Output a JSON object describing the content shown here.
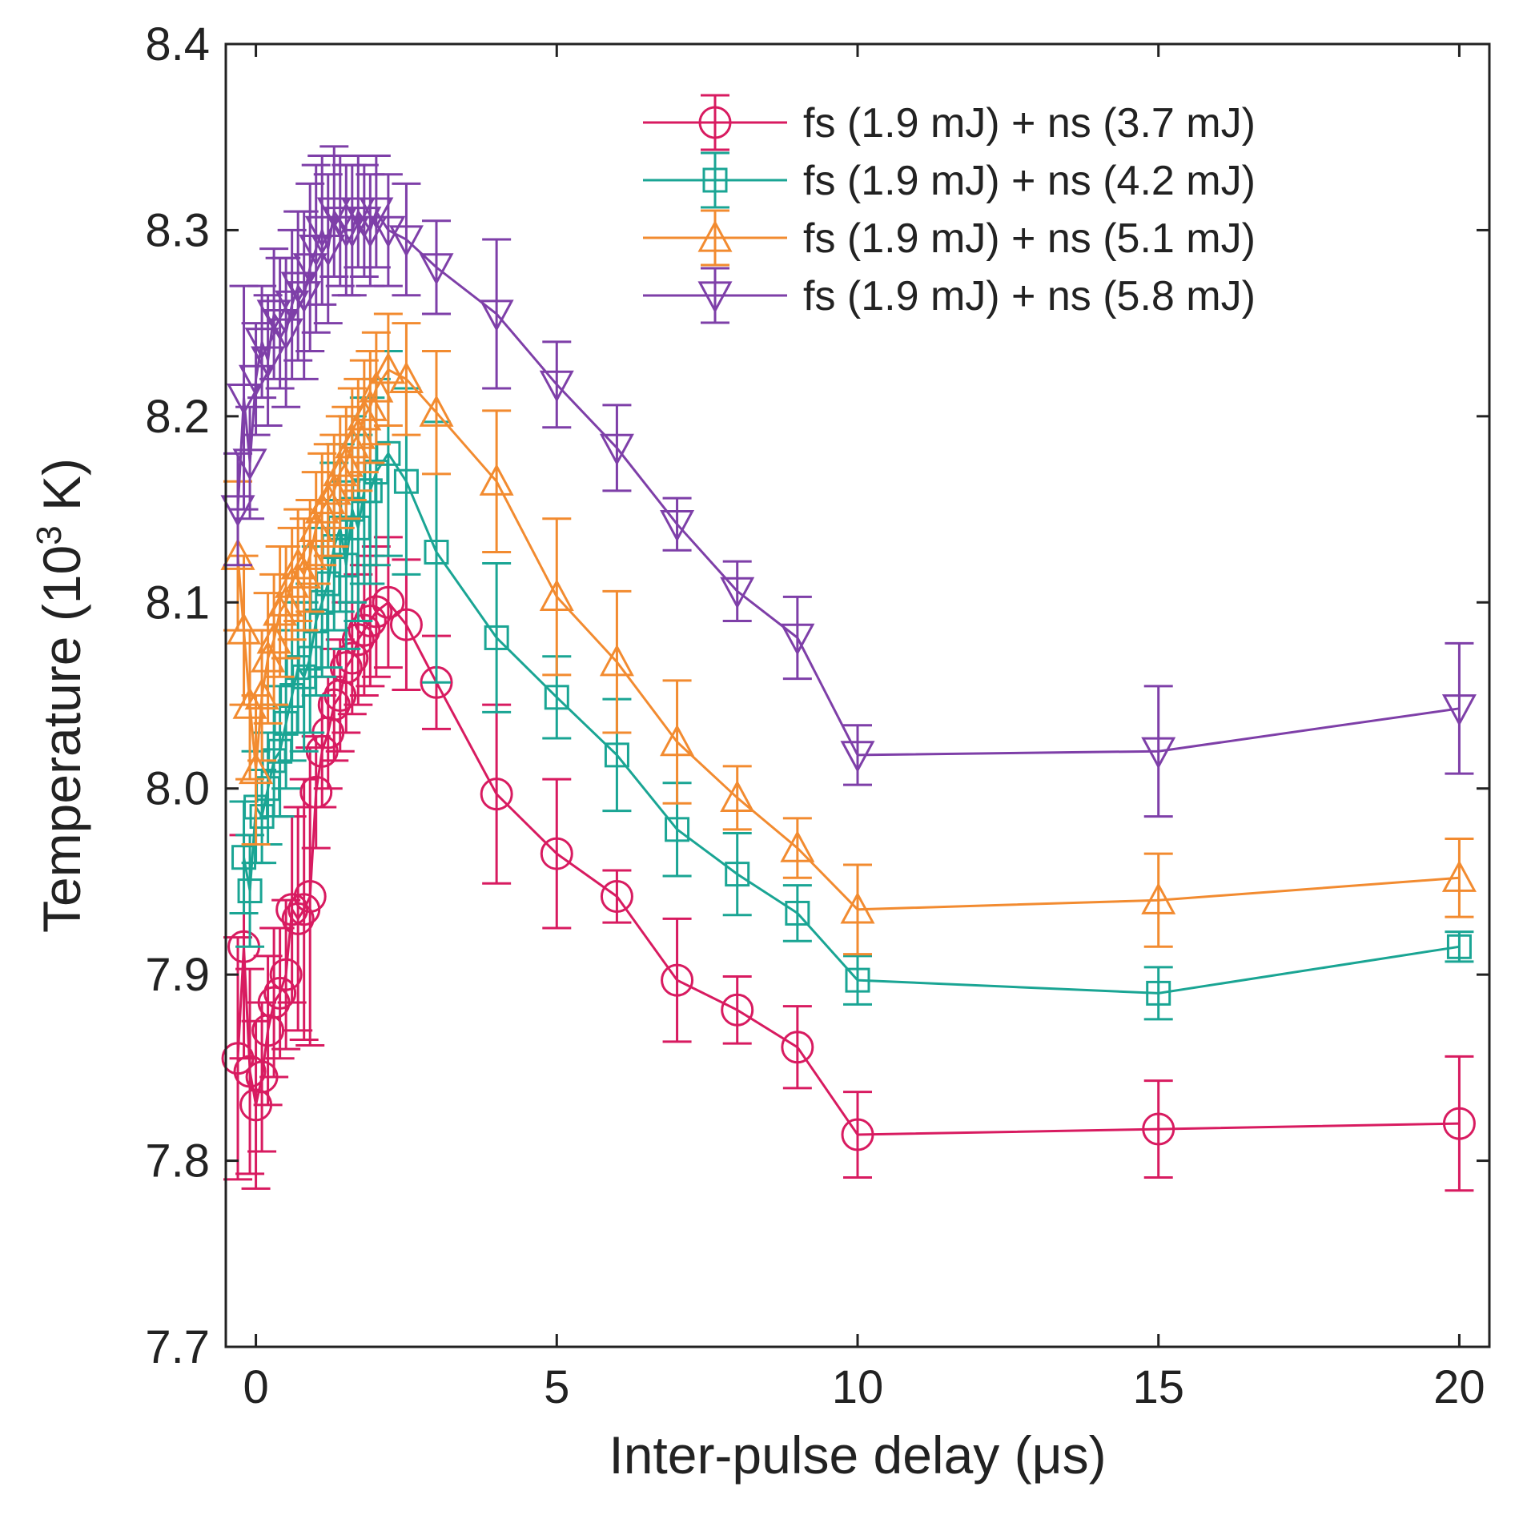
{
  "chart_data": {
    "type": "line",
    "xlabel": "Inter-pulse delay (μs)",
    "ylabel_prefix": "Temperature (10",
    "ylabel_exp": "3",
    "ylabel_suffix": " K)",
    "xlim": [
      -0.5,
      20.5
    ],
    "ylim": [
      7.7,
      8.4
    ],
    "xticks": [
      0,
      5,
      10,
      15,
      20
    ],
    "yticks": [
      7.7,
      7.8,
      7.9,
      8.0,
      8.1,
      8.2,
      8.3,
      8.4
    ],
    "ytick_labels": [
      "7.7",
      "7.8",
      "7.9",
      "8.0",
      "8.1",
      "8.2",
      "8.3",
      "8.4"
    ],
    "grid": false,
    "legend_position": "top-right",
    "series": [
      {
        "name": "fs (1.9 mJ) + ns (3.7 mJ)",
        "color": "#d81b60",
        "marker": "circle",
        "x": [
          -0.3,
          -0.2,
          -0.1,
          0.0,
          0.1,
          0.2,
          0.3,
          0.4,
          0.5,
          0.6,
          0.7,
          0.8,
          0.9,
          1.0,
          1.1,
          1.2,
          1.3,
          1.4,
          1.5,
          1.6,
          1.7,
          1.8,
          1.9,
          2.0,
          2.2,
          2.5,
          3.0,
          4.0,
          5.0,
          6.0,
          7.0,
          8.0,
          9.0,
          10.0,
          15.0,
          20.0
        ],
        "y": [
          7.855,
          7.915,
          7.848,
          7.83,
          7.845,
          7.87,
          7.885,
          7.89,
          7.9,
          7.935,
          7.93,
          7.935,
          7.942,
          7.998,
          8.02,
          8.03,
          8.045,
          8.05,
          8.065,
          8.07,
          8.08,
          8.085,
          8.09,
          8.095,
          8.1,
          8.088,
          8.057,
          7.997,
          7.965,
          7.942,
          7.897,
          7.881,
          7.861,
          7.814,
          7.817,
          7.82
        ],
        "err": [
          0.065,
          0.06,
          0.055,
          0.045,
          0.04,
          0.04,
          0.04,
          0.035,
          0.04,
          0.05,
          0.06,
          0.07,
          0.08,
          0.03,
          0.03,
          0.03,
          0.03,
          0.03,
          0.035,
          0.03,
          0.035,
          0.035,
          0.035,
          0.035,
          0.035,
          0.035,
          0.025,
          0.048,
          0.04,
          0.014,
          0.033,
          0.018,
          0.022,
          0.023,
          0.026,
          0.036
        ]
      },
      {
        "name": "fs (1.9 mJ) + ns (4.2 mJ)",
        "color": "#1aa594",
        "marker": "square",
        "x": [
          -0.2,
          -0.1,
          0.0,
          0.1,
          0.2,
          0.3,
          0.4,
          0.5,
          0.6,
          0.7,
          0.8,
          0.9,
          1.0,
          1.1,
          1.2,
          1.3,
          1.4,
          1.5,
          1.6,
          1.7,
          1.8,
          1.9,
          2.0,
          2.2,
          2.5,
          3.0,
          4.0,
          5.0,
          6.0,
          7.0,
          8.0,
          9.0,
          10.0,
          15.0,
          20.0
        ],
        "y": [
          7.963,
          7.945,
          7.99,
          7.985,
          8.0,
          8.015,
          8.02,
          8.035,
          8.05,
          8.065,
          8.06,
          8.07,
          8.09,
          8.1,
          8.11,
          8.13,
          8.14,
          8.12,
          8.15,
          8.14,
          8.16,
          8.16,
          8.17,
          8.18,
          8.165,
          8.127,
          8.081,
          8.049,
          8.018,
          7.978,
          7.954,
          7.933,
          7.897,
          7.89,
          7.915
        ],
        "err": [
          0.03,
          0.03,
          0.03,
          0.025,
          0.03,
          0.03,
          0.035,
          0.035,
          0.035,
          0.035,
          0.04,
          0.04,
          0.04,
          0.04,
          0.045,
          0.045,
          0.045,
          0.045,
          0.05,
          0.05,
          0.05,
          0.05,
          0.05,
          0.055,
          0.05,
          0.07,
          0.04,
          0.022,
          0.03,
          0.025,
          0.022,
          0.015,
          0.013,
          0.014,
          0.008
        ]
      },
      {
        "name": "fs (1.9 mJ) + ns (5.1 mJ)",
        "color": "#f28b30",
        "marker": "triangle-up",
        "x": [
          -0.3,
          -0.2,
          -0.1,
          0.0,
          0.1,
          0.2,
          0.3,
          0.4,
          0.5,
          0.6,
          0.7,
          0.8,
          0.9,
          1.0,
          1.1,
          1.2,
          1.3,
          1.4,
          1.5,
          1.6,
          1.7,
          1.8,
          1.9,
          2.0,
          2.2,
          2.5,
          3.0,
          4.0,
          5.0,
          6.0,
          7.0,
          8.0,
          9.0,
          10.0,
          15.0,
          20.0
        ],
        "y": [
          8.125,
          8.085,
          8.045,
          8.01,
          8.05,
          8.07,
          8.08,
          8.095,
          8.1,
          8.11,
          8.12,
          8.115,
          8.125,
          8.14,
          8.15,
          8.155,
          8.16,
          8.17,
          8.175,
          8.185,
          8.19,
          8.2,
          8.205,
          8.215,
          8.225,
          8.22,
          8.202,
          8.165,
          8.103,
          8.068,
          8.025,
          7.995,
          7.968,
          7.935,
          7.94,
          7.952
        ],
        "err": [
          0.04,
          0.04,
          0.04,
          0.04,
          0.035,
          0.035,
          0.035,
          0.035,
          0.03,
          0.03,
          0.03,
          0.03,
          0.03,
          0.03,
          0.03,
          0.03,
          0.03,
          0.03,
          0.03,
          0.03,
          0.03,
          0.03,
          0.03,
          0.03,
          0.03,
          0.03,
          0.033,
          0.038,
          0.042,
          0.038,
          0.033,
          0.017,
          0.016,
          0.024,
          0.025,
          0.021
        ]
      },
      {
        "name": "fs (1.9 mJ) + ns (5.8 mJ)",
        "color": "#7e3fa8",
        "marker": "triangle-down",
        "x": [
          -0.3,
          -0.2,
          -0.1,
          0.0,
          0.1,
          0.2,
          0.3,
          0.4,
          0.5,
          0.6,
          0.7,
          0.8,
          0.9,
          1.0,
          1.1,
          1.2,
          1.3,
          1.4,
          1.5,
          1.6,
          1.7,
          1.8,
          1.9,
          2.0,
          2.2,
          2.5,
          3.0,
          4.0,
          5.0,
          6.0,
          7.0,
          8.0,
          9.0,
          10.0,
          15.0,
          20.0
        ],
        "y": [
          8.15,
          8.21,
          8.175,
          8.22,
          8.24,
          8.23,
          8.255,
          8.25,
          8.245,
          8.26,
          8.27,
          8.265,
          8.28,
          8.29,
          8.3,
          8.29,
          8.31,
          8.305,
          8.3,
          8.3,
          8.31,
          8.305,
          8.3,
          8.31,
          8.3,
          8.295,
          8.28,
          8.255,
          8.217,
          8.183,
          8.142,
          8.106,
          8.081,
          8.018,
          8.02,
          8.043
        ],
        "err": [
          0.03,
          0.06,
          0.03,
          0.03,
          0.03,
          0.035,
          0.035,
          0.035,
          0.04,
          0.04,
          0.04,
          0.045,
          0.045,
          0.045,
          0.04,
          0.04,
          0.035,
          0.035,
          0.035,
          0.035,
          0.03,
          0.03,
          0.03,
          0.03,
          0.03,
          0.03,
          0.025,
          0.04,
          0.023,
          0.023,
          0.014,
          0.016,
          0.022,
          0.016,
          0.035,
          0.035
        ]
      }
    ]
  }
}
